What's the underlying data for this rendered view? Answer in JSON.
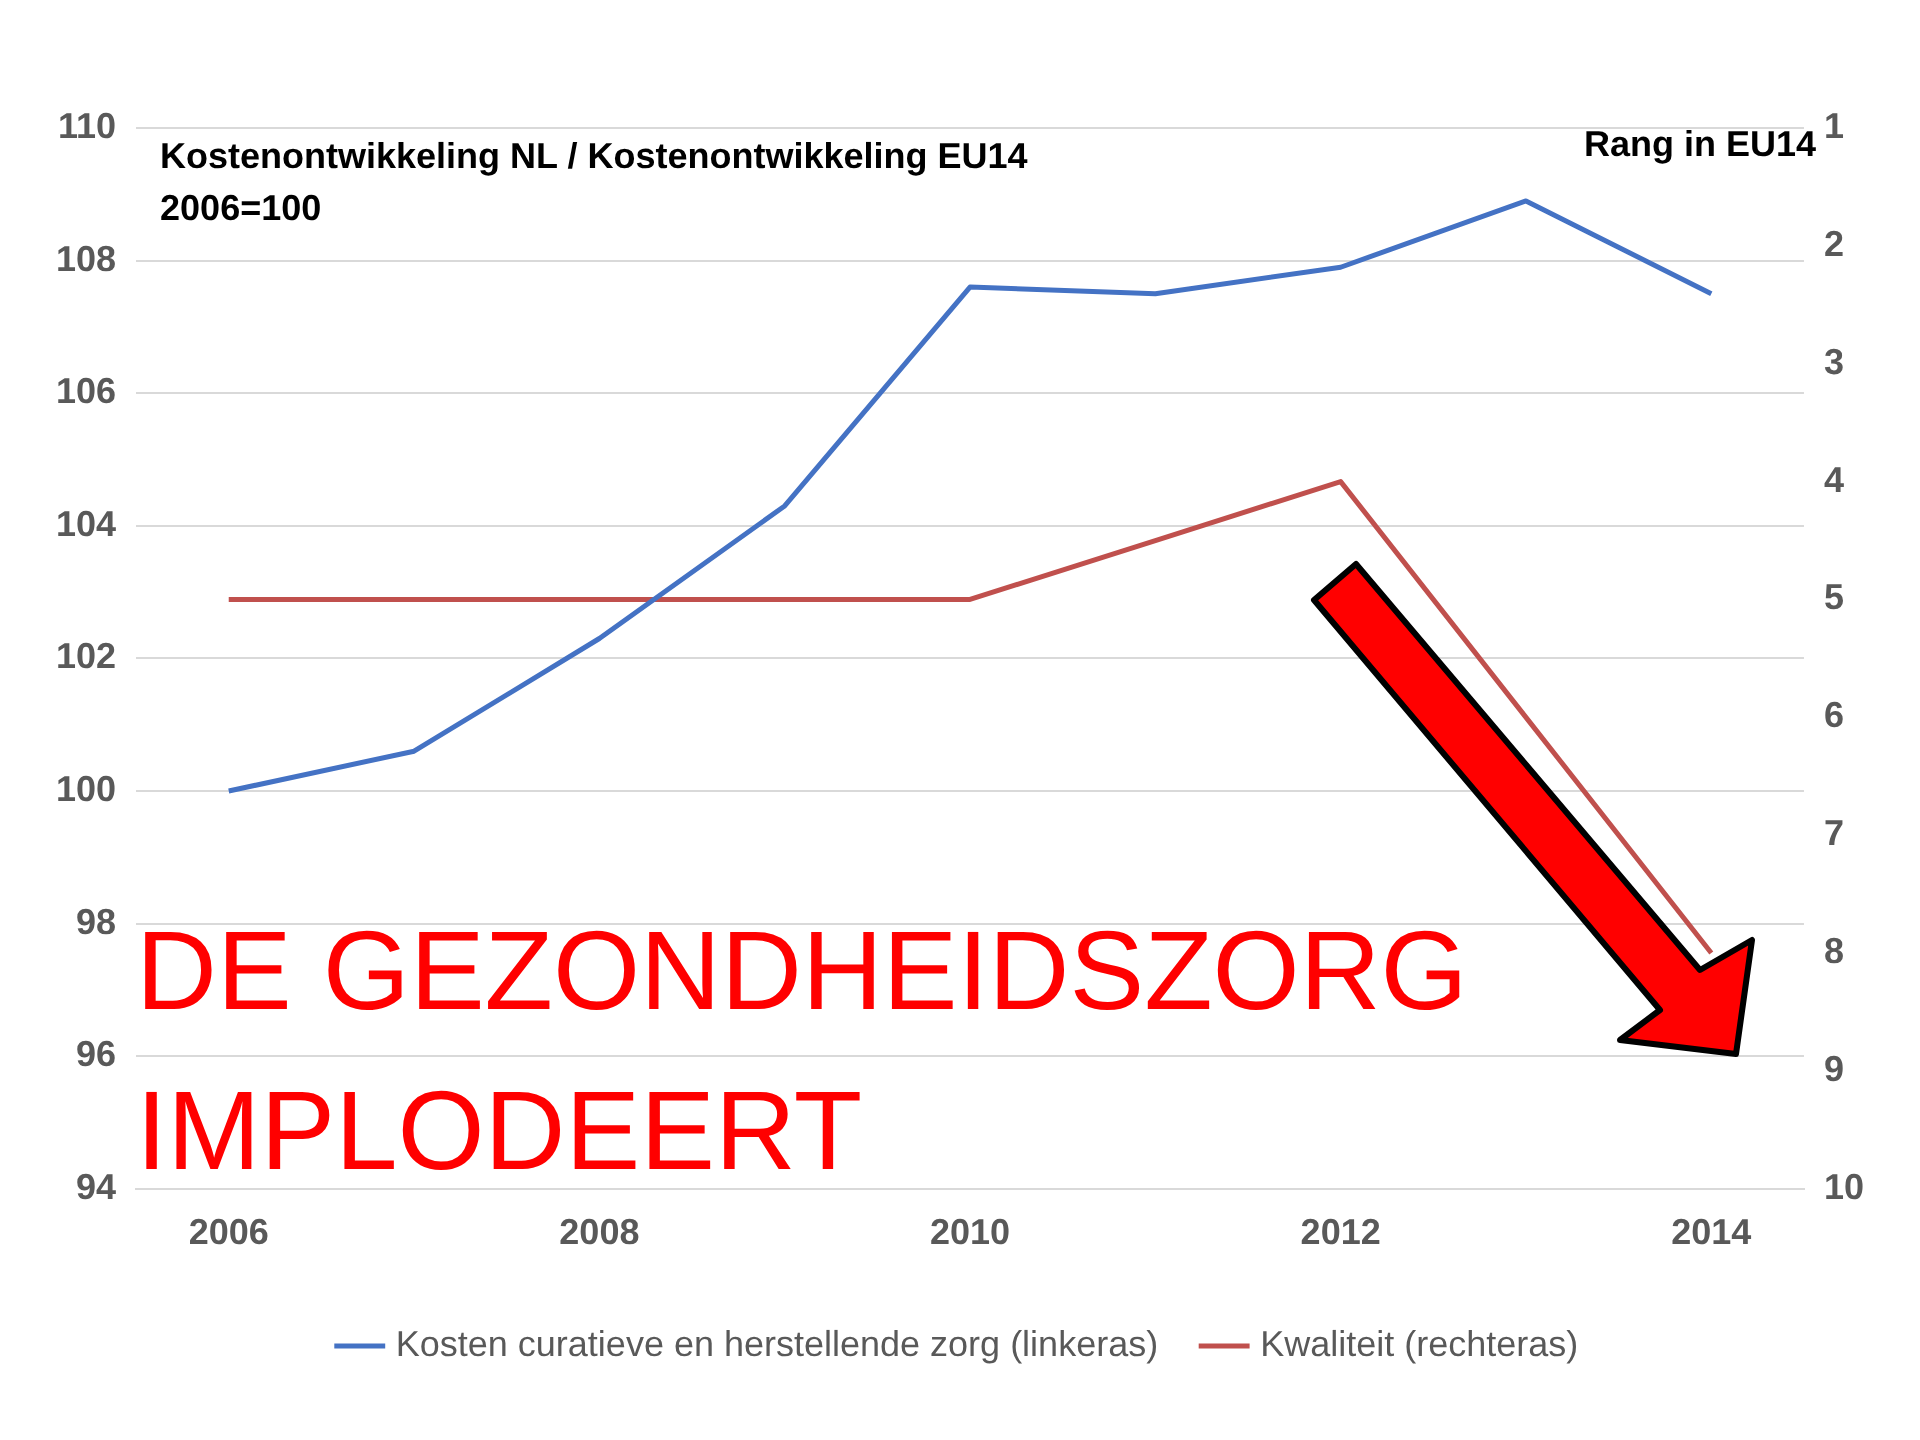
{
  "chart_data": {
    "type": "line",
    "title": "Kostenontwikkeling NL / Kostenontwikkeling EU14",
    "subtitle": "2006=100",
    "y2label": "Rang in EU14",
    "x": [
      2006,
      2007,
      2008,
      2009,
      2010,
      2011,
      2012,
      2013,
      2014
    ],
    "series": [
      {
        "name": "Kosten curatieve en herstellende zorg (linkeras)",
        "color": "#4472c4",
        "values": [
          100,
          100.6,
          102.3,
          104.3,
          107.6,
          107.5,
          107.9,
          108.9,
          107.5
        ]
      },
      {
        "name": "Kwaliteit (rechteras)",
        "color": "#c0504d",
        "axis": "y2",
        "values": [
          5,
          5,
          5,
          5,
          5,
          4.5,
          4,
          6,
          8
        ]
      }
    ],
    "xlim": [
      2005.5,
      2014.5
    ],
    "xticks": [
      2006,
      2008,
      2010,
      2012,
      2014
    ],
    "ylim": [
      94,
      110
    ],
    "yticks": [
      94,
      96,
      98,
      100,
      102,
      104,
      106,
      108,
      110
    ],
    "y2lim": [
      10,
      1
    ],
    "y2ticks": [
      1,
      2,
      3,
      4,
      5,
      6,
      7,
      8,
      9,
      10
    ],
    "grid": "y",
    "legend": "bottom",
    "marker": "none",
    "line_style": "solid",
    "annotations": [
      "DE GEZONDHEIDSZORG IMPLODEERT"
    ]
  }
}
